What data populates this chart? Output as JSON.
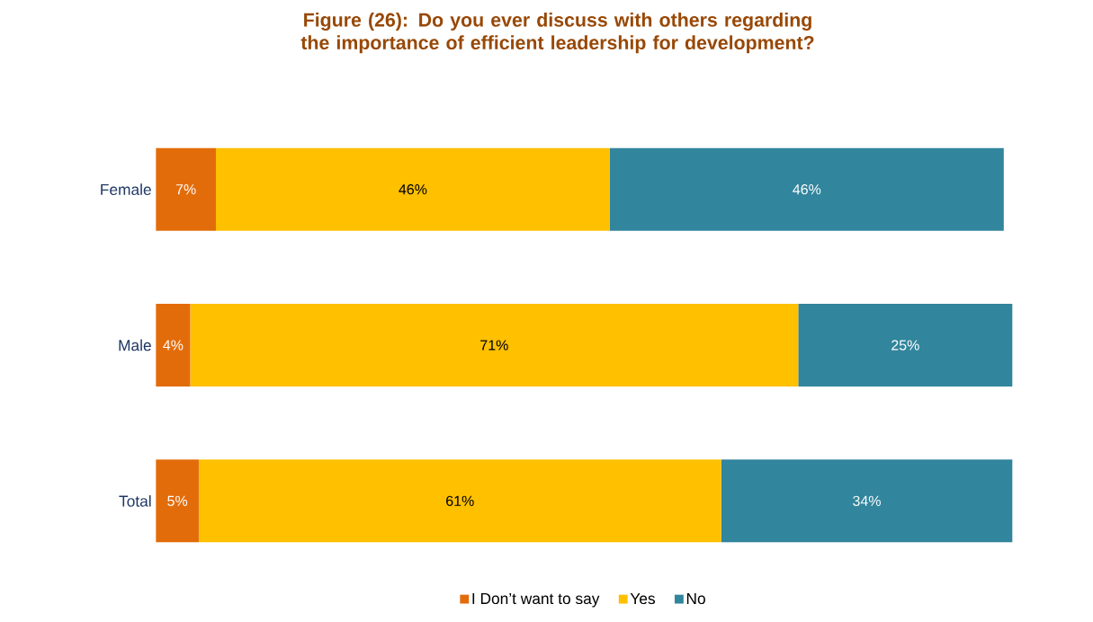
{
  "chart_data": {
    "type": "bar",
    "orientation": "horizontal",
    "stacked": true,
    "title": "Figure (26): Do you ever discuss with others regarding the importance of efficient leadership for development?",
    "categories": [
      "Female",
      "Male",
      "Total"
    ],
    "series": [
      {
        "name": "I Don’t want to say",
        "color": "#e36c0a",
        "values": [
          7,
          4,
          5
        ],
        "value_labels": [
          "7%",
          "4%",
          "5%"
        ]
      },
      {
        "name": "Yes",
        "color": "#ffc000",
        "values": [
          46,
          71,
          61
        ],
        "value_labels": [
          "46%",
          "71%",
          "61%"
        ]
      },
      {
        "name": "No",
        "color": "#31859c",
        "values": [
          46,
          25,
          34
        ],
        "value_labels": [
          "46%",
          "25%",
          "34%"
        ]
      }
    ],
    "legend": "bottom"
  }
}
